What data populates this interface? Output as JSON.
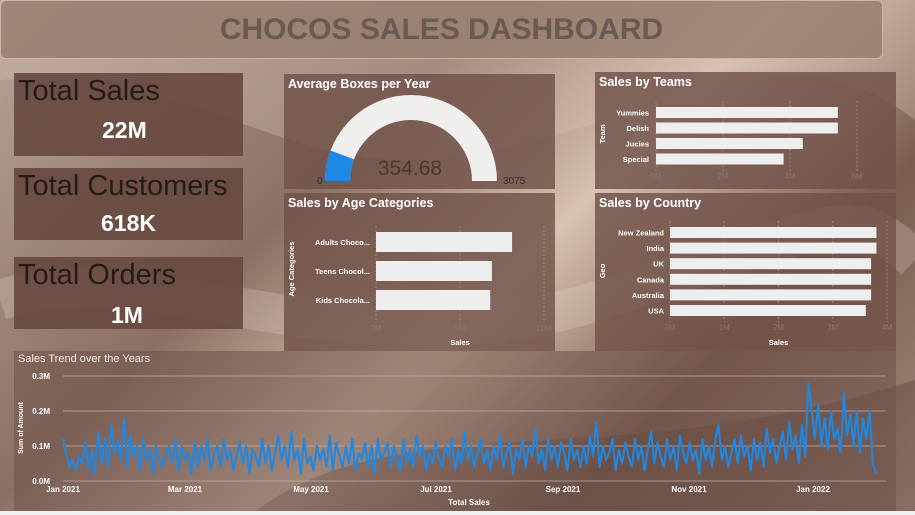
{
  "header": {
    "title": "CHOCOS SALES DASHBOARD"
  },
  "kpis": {
    "total_sales": {
      "label": "Total Sales",
      "value": "22M"
    },
    "total_customers": {
      "label": "Total Customers",
      "value": "618K"
    },
    "total_orders": {
      "label": "Total Orders",
      "value": "1M"
    }
  },
  "colors": {
    "accent": "#1e88e5",
    "bar": "#eeeeee",
    "panel": "#705248"
  },
  "chart_data": [
    {
      "type": "gauge",
      "title": "Average Boxes per Year",
      "value": 354.68,
      "min": 0,
      "max": 3075,
      "value_label": "354.68",
      "min_label": "0",
      "max_label": "3075"
    },
    {
      "type": "bar",
      "orientation": "horizontal",
      "title": "Sales by Teams",
      "ylabel": "Team",
      "xlabel": "",
      "categories": [
        "Yummies",
        "Delish",
        "Jucies",
        "Special"
      ],
      "values": [
        5.7,
        5.7,
        4.6,
        4.0
      ],
      "xticks": [
        "0M",
        "2M",
        "4M",
        "6M"
      ],
      "xlim": [
        0,
        6.3
      ]
    },
    {
      "type": "bar",
      "orientation": "horizontal",
      "title": "Sales by Age Categories",
      "ylabel": "Age Categories",
      "xlabel": "Sales",
      "categories": [
        "Adults Choco...",
        "Teens Chocol...",
        "Kids Chocola..."
      ],
      "values": [
        8.1,
        6.9,
        6.8
      ],
      "xticks": [
        "0M",
        "5M",
        "10M"
      ],
      "xlim": [
        0,
        10
      ]
    },
    {
      "type": "bar",
      "orientation": "horizontal",
      "title": "Sales by Country",
      "ylabel": "Geo",
      "xlabel": "Sales",
      "categories": [
        "New Zealand",
        "India",
        "UK",
        "Canada",
        "Australia",
        "USA"
      ],
      "values": [
        3.9,
        3.9,
        3.8,
        3.8,
        3.8,
        3.7
      ],
      "xticks": [
        "0M",
        "1M",
        "2M",
        "3M",
        "4M"
      ],
      "xlim": [
        0,
        4.1
      ]
    },
    {
      "type": "line",
      "title": "Sales Trend over the Years",
      "ylabel": "Sum of Amount",
      "xlabel": "Total Sales",
      "yticks": [
        "0.0M",
        "0.1M",
        "0.2M",
        "0.3M"
      ],
      "ylim": [
        0,
        0.3
      ],
      "xticks": [
        "Jan 2021",
        "Mar 2021",
        "May 2021",
        "Jul 2021",
        "Sep 2021",
        "Nov 2021",
        "Jan 2022"
      ],
      "values": [
        0.12,
        0.08,
        0.04,
        0.06,
        0.03,
        0.07,
        0.05,
        0.11,
        0.03,
        0.09,
        0.02,
        0.14,
        0.05,
        0.12,
        0.04,
        0.16,
        0.08,
        0.11,
        0.06,
        0.18,
        0.04,
        0.13,
        0.07,
        0.1,
        0.03,
        0.12,
        0.06,
        0.09,
        0.02,
        0.1,
        0.06,
        0.04,
        0.08,
        0.1,
        0.05,
        0.12,
        0.03,
        0.1,
        0.06,
        0.08,
        0.02,
        0.11,
        0.04,
        0.1,
        0.06,
        0.12,
        0.03,
        0.08,
        0.1,
        0.04,
        0.12,
        0.06,
        0.09,
        0.03,
        0.07,
        0.11,
        0.05,
        0.1,
        0.02,
        0.09,
        0.07,
        0.04,
        0.12,
        0.05,
        0.1,
        0.03,
        0.08,
        0.13,
        0.06,
        0.1,
        0.04,
        0.14,
        0.06,
        0.09,
        0.02,
        0.12,
        0.05,
        0.07,
        0.03,
        0.1,
        0.06,
        0.09,
        0.04,
        0.13,
        0.03,
        0.11,
        0.07,
        0.04,
        0.1,
        0.05,
        0.12,
        0.03,
        0.08,
        0.06,
        0.11,
        0.04,
        0.1,
        0.02,
        0.12,
        0.06,
        0.08,
        0.11,
        0.04,
        0.1,
        0.06,
        0.03,
        0.12,
        0.05,
        0.09,
        0.04,
        0.13,
        0.07,
        0.1,
        0.03,
        0.08,
        0.05,
        0.11,
        0.06,
        0.04,
        0.1,
        0.07,
        0.12,
        0.03,
        0.09,
        0.05,
        0.14,
        0.06,
        0.1,
        0.04,
        0.08,
        0.12,
        0.05,
        0.09,
        0.03,
        0.1,
        0.06,
        0.13,
        0.04,
        0.08,
        0.11,
        0.02,
        0.09,
        0.06,
        0.12,
        0.04,
        0.1,
        0.07,
        0.15,
        0.05,
        0.09,
        0.03,
        0.12,
        0.06,
        0.1,
        0.04,
        0.11,
        0.08,
        0.03,
        0.12,
        0.06,
        0.09,
        0.04,
        0.1,
        0.05,
        0.13,
        0.07,
        0.17,
        0.04,
        0.1,
        0.06,
        0.08,
        0.12,
        0.03,
        0.09,
        0.05,
        0.11,
        0.07,
        0.04,
        0.12,
        0.06,
        0.1,
        0.03,
        0.09,
        0.14,
        0.05,
        0.11,
        0.07,
        0.04,
        0.12,
        0.06,
        0.1,
        0.03,
        0.13,
        0.08,
        0.05,
        0.11,
        0.06,
        0.09,
        0.02,
        0.12,
        0.06,
        0.1,
        0.04,
        0.12,
        0.16,
        0.06,
        0.1,
        0.04,
        0.08,
        0.12,
        0.05,
        0.13,
        0.07,
        0.1,
        0.03,
        0.12,
        0.06,
        0.11,
        0.04,
        0.15,
        0.08,
        0.12,
        0.05,
        0.1,
        0.14,
        0.06,
        0.17,
        0.09,
        0.13,
        0.05,
        0.16,
        0.07,
        0.28,
        0.2,
        0.12,
        0.22,
        0.1,
        0.18,
        0.09,
        0.2,
        0.12,
        0.15,
        0.08,
        0.25,
        0.13,
        0.19,
        0.1,
        0.2,
        0.08,
        0.18,
        0.12,
        0.2,
        0.05,
        0.02
      ]
    }
  ]
}
